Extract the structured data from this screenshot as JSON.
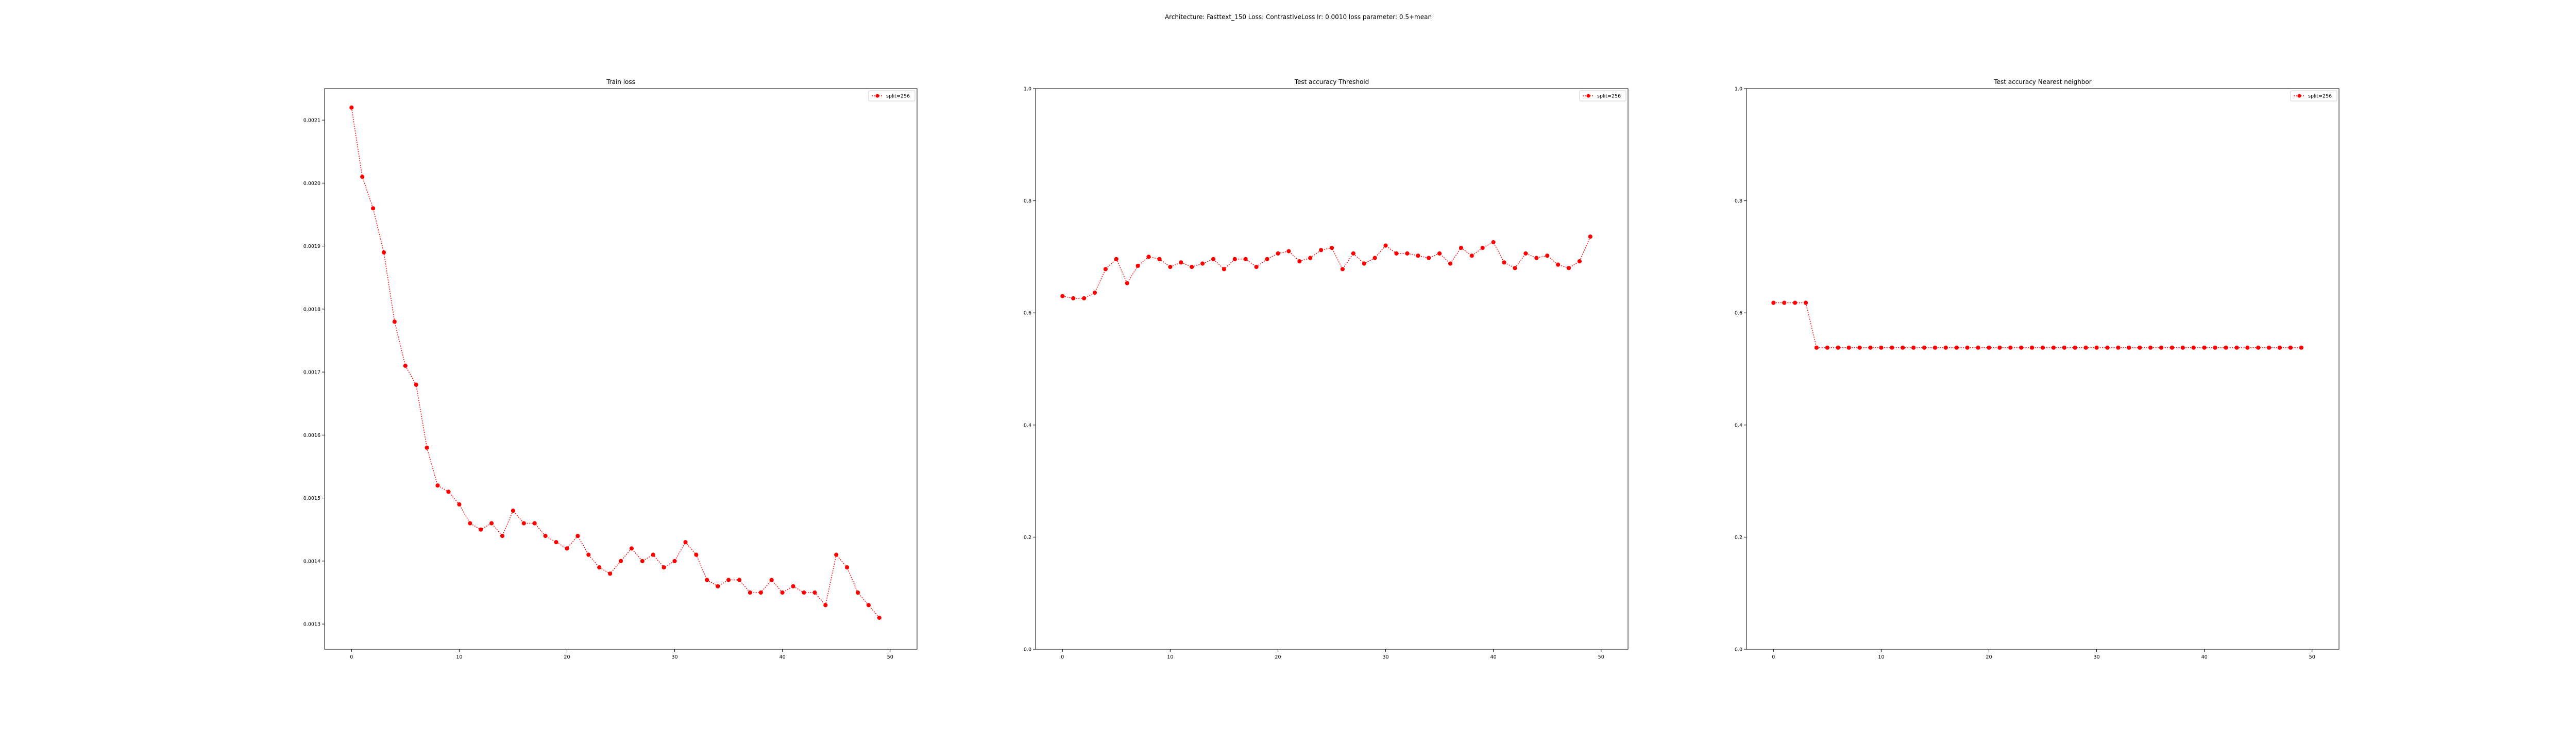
{
  "figure": {
    "suptitle": "Architecture: Fasttext_150 Loss: ContrastiveLoss lr: 0.0010 loss parameter: 0.5+mean"
  },
  "colors": {
    "series": "#ff0000",
    "axis": "#000000"
  },
  "chart_data": [
    {
      "type": "line",
      "title": "Train loss",
      "xlabel": "",
      "ylabel": "",
      "xlim": [
        -2.5,
        52.5
      ],
      "ylim": [
        0.00126,
        0.00215
      ],
      "xticks": [
        0,
        10,
        20,
        30,
        40,
        50
      ],
      "yticks": [
        0.0013,
        0.0014,
        0.0015,
        0.0016,
        0.0017,
        0.0018,
        0.0019,
        0.002,
        0.0021
      ],
      "ytick_labels": [
        "0.0013",
        "0.0014",
        "0.0015",
        "0.0016",
        "0.0017",
        "0.0018",
        "0.0019",
        "0.0020",
        "0.0021"
      ],
      "legend_position": "upper right",
      "grid": false,
      "series": [
        {
          "name": "split=256",
          "line_style": "dotted",
          "marker": "circle",
          "x": [
            0,
            1,
            2,
            3,
            4,
            5,
            6,
            7,
            8,
            9,
            10,
            11,
            12,
            13,
            14,
            15,
            16,
            17,
            18,
            19,
            20,
            21,
            22,
            23,
            24,
            25,
            26,
            27,
            28,
            29,
            30,
            31,
            32,
            33,
            34,
            35,
            36,
            37,
            38,
            39,
            40,
            41,
            42,
            43,
            44,
            45,
            46,
            47,
            48,
            49
          ],
          "y": [
            0.00212,
            0.00201,
            0.00196,
            0.00189,
            0.00178,
            0.00171,
            0.00168,
            0.00158,
            0.00152,
            0.00151,
            0.00149,
            0.00146,
            0.00145,
            0.00146,
            0.00144,
            0.00148,
            0.00146,
            0.00146,
            0.00144,
            0.00143,
            0.00142,
            0.00144,
            0.00141,
            0.00139,
            0.00138,
            0.0014,
            0.00142,
            0.0014,
            0.00141,
            0.00139,
            0.0014,
            0.00143,
            0.00141,
            0.00137,
            0.00136,
            0.00137,
            0.00137,
            0.00135,
            0.00135,
            0.00137,
            0.00135,
            0.00136,
            0.00135,
            0.00135,
            0.00133,
            0.00141,
            0.00139,
            0.00135,
            0.00133,
            0.00131
          ]
        }
      ]
    },
    {
      "type": "line",
      "title": "Test accuracy Threshold",
      "xlabel": "",
      "ylabel": "",
      "xlim": [
        -2.5,
        52.5
      ],
      "ylim": [
        0.0,
        1.0
      ],
      "xticks": [
        0,
        10,
        20,
        30,
        40,
        50
      ],
      "yticks": [
        0.0,
        0.2,
        0.4,
        0.6,
        0.8,
        1.0
      ],
      "ytick_labels": [
        "0.0",
        "0.2",
        "0.4",
        "0.6",
        "0.8",
        "1.0"
      ],
      "legend_position": "upper right",
      "grid": false,
      "series": [
        {
          "name": "split=256",
          "line_style": "dotted",
          "marker": "circle",
          "x": [
            0,
            1,
            2,
            3,
            4,
            5,
            6,
            7,
            8,
            9,
            10,
            11,
            12,
            13,
            14,
            15,
            16,
            17,
            18,
            19,
            20,
            21,
            22,
            23,
            24,
            25,
            26,
            27,
            28,
            29,
            30,
            31,
            32,
            33,
            34,
            35,
            36,
            37,
            38,
            39,
            40,
            41,
            42,
            43,
            44,
            45,
            46,
            47,
            48,
            49
          ],
          "y": [
            0.63,
            0.626,
            0.626,
            0.636,
            0.678,
            0.696,
            0.653,
            0.684,
            0.7,
            0.696,
            0.682,
            0.69,
            0.682,
            0.688,
            0.696,
            0.678,
            0.696,
            0.696,
            0.682,
            0.696,
            0.706,
            0.71,
            0.692,
            0.698,
            0.712,
            0.716,
            0.678,
            0.706,
            0.688,
            0.698,
            0.72,
            0.706,
            0.706,
            0.702,
            0.698,
            0.706,
            0.688,
            0.716,
            0.702,
            0.716,
            0.726,
            0.69,
            0.68,
            0.706,
            0.698,
            0.702,
            0.686,
            0.68,
            0.692,
            0.736
          ]
        }
      ]
    },
    {
      "type": "line",
      "title": "Test accuracy Nearest neighbor",
      "xlabel": "",
      "ylabel": "",
      "xlim": [
        -2.5,
        52.5
      ],
      "ylim": [
        0.0,
        1.0
      ],
      "xticks": [
        0,
        10,
        20,
        30,
        40,
        50
      ],
      "yticks": [
        0.0,
        0.2,
        0.4,
        0.6,
        0.8,
        1.0
      ],
      "ytick_labels": [
        "0.0",
        "0.2",
        "0.4",
        "0.6",
        "0.8",
        "1.0"
      ],
      "legend_position": "upper right",
      "grid": false,
      "series": [
        {
          "name": "split=256",
          "line_style": "dotted",
          "marker": "circle",
          "x": [
            0,
            1,
            2,
            3,
            4,
            5,
            6,
            7,
            8,
            9,
            10,
            11,
            12,
            13,
            14,
            15,
            16,
            17,
            18,
            19,
            20,
            21,
            22,
            23,
            24,
            25,
            26,
            27,
            28,
            29,
            30,
            31,
            32,
            33,
            34,
            35,
            36,
            37,
            38,
            39,
            40,
            41,
            42,
            43,
            44,
            45,
            46,
            47,
            48,
            49
          ],
          "y": [
            0.618,
            0.618,
            0.618,
            0.618,
            0.538,
            0.538,
            0.538,
            0.538,
            0.538,
            0.538,
            0.538,
            0.538,
            0.538,
            0.538,
            0.538,
            0.538,
            0.538,
            0.538,
            0.538,
            0.538,
            0.538,
            0.538,
            0.538,
            0.538,
            0.538,
            0.538,
            0.538,
            0.538,
            0.538,
            0.538,
            0.538,
            0.538,
            0.538,
            0.538,
            0.538,
            0.538,
            0.538,
            0.538,
            0.538,
            0.538,
            0.538,
            0.538,
            0.538,
            0.538,
            0.538,
            0.538,
            0.538,
            0.538,
            0.538,
            0.538
          ]
        }
      ]
    }
  ]
}
